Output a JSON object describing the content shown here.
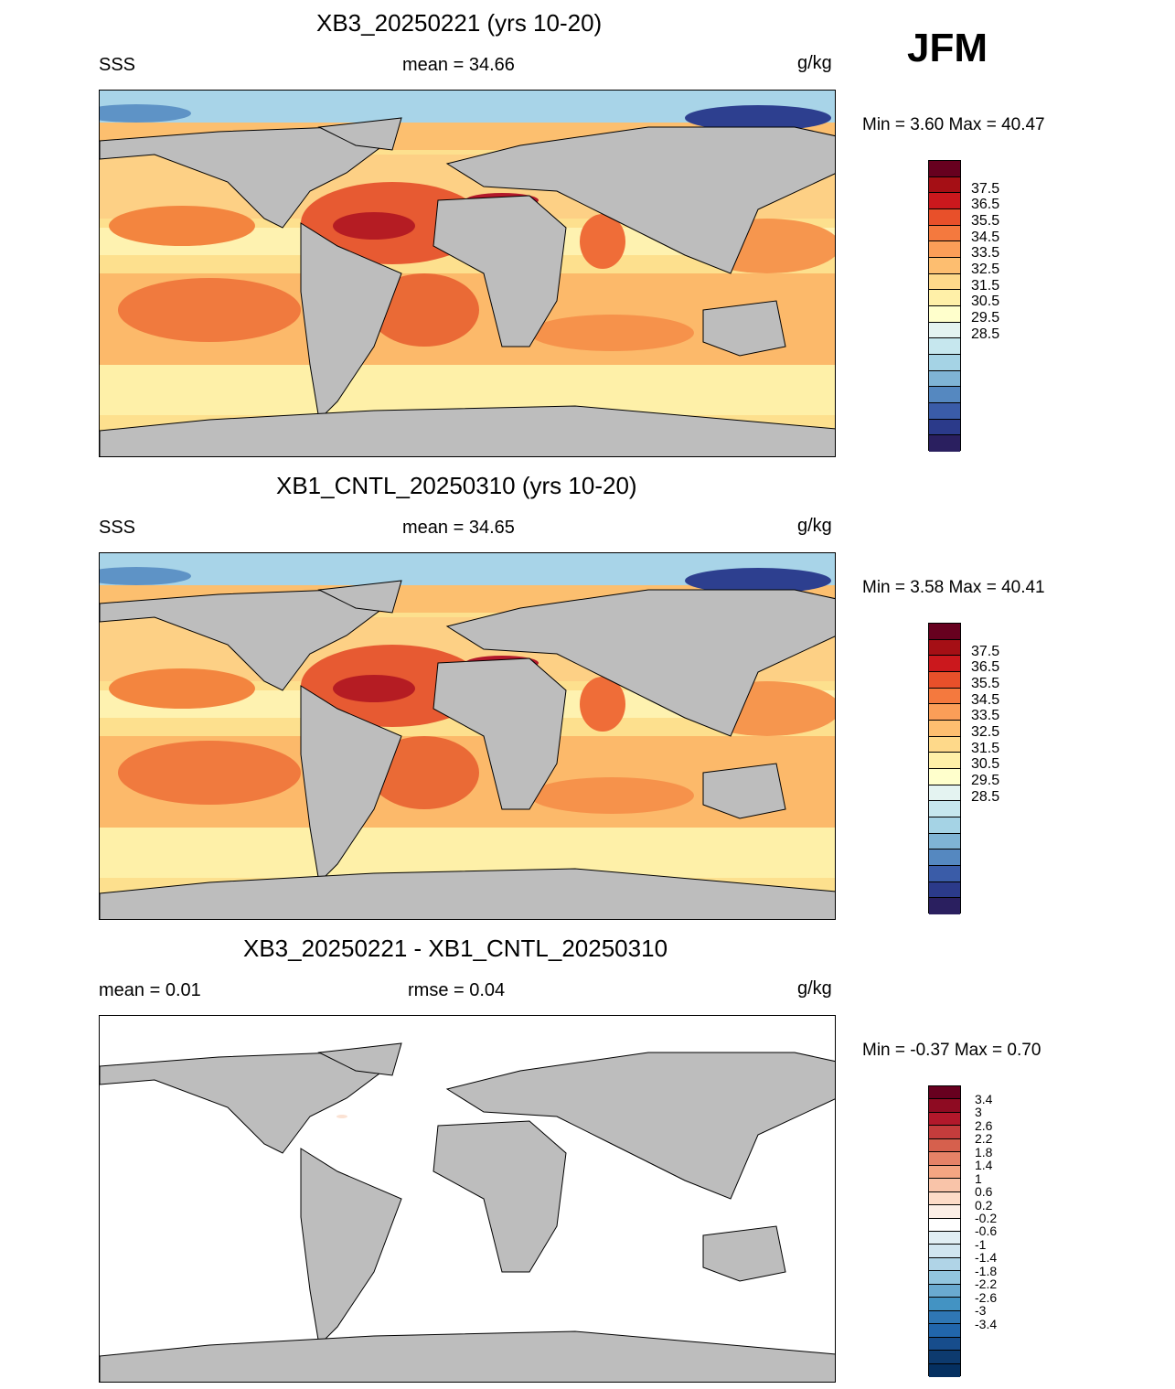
{
  "season": "JFM",
  "panels": [
    {
      "title": "XB3_20250221 (yrs 10-20)",
      "left_label": "SSS",
      "center_label": "mean =  34.66",
      "units": "g/kg",
      "minmax": "Min =   3.60 Max =  40.47",
      "type": "field"
    },
    {
      "title": "XB1_CNTL_20250310 (yrs 10-20)",
      "left_label": "SSS",
      "center_label": "mean =  34.65",
      "units": "g/kg",
      "minmax": "Min =   3.58 Max =  40.41",
      "type": "field"
    },
    {
      "title": "XB3_20250221 - XB1_CNTL_20250310",
      "left_label": "mean =   0.01",
      "center_label": "rmse =   0.04",
      "units": "g/kg",
      "minmax": "Min =  -0.37 Max =   0.70",
      "type": "difference"
    }
  ],
  "colorbar_field": {
    "labels": [
      "37.5",
      "36.5",
      "35.5",
      "34.5",
      "33.5",
      "32.5",
      "31.5",
      "30.5",
      "29.5",
      "28.5"
    ],
    "colors": [
      "#67001f",
      "#a50f15",
      "#cb181d",
      "#e8502a",
      "#f4793e",
      "#fb9e58",
      "#fdbe70",
      "#fed98a",
      "#fff0a8",
      "#ffffcc",
      "#e4f3f1",
      "#c6e7ee",
      "#a5d3e5",
      "#7fb4d5",
      "#5588c0",
      "#3a5ca8",
      "#2b3a8a",
      "#2a1f5f"
    ]
  },
  "colorbar_diff": {
    "labels": [
      "3.4",
      "3",
      "2.6",
      "2.2",
      "1.8",
      "1.4",
      "1",
      "0.6",
      "0.2",
      "-0.2",
      "-0.6",
      "-1",
      "-1.4",
      "-1.8",
      "-2.2",
      "-2.6",
      "-3",
      "-3.4"
    ],
    "colors": [
      "#67001f",
      "#8e0b22",
      "#b2182b",
      "#c43c3c",
      "#d6604d",
      "#e58267",
      "#f4a582",
      "#f9c4a9",
      "#fddbc7",
      "#fbeee6",
      "#ffffff",
      "#e1eef4",
      "#d1e5f0",
      "#b0d4e7",
      "#92c5de",
      "#6aaad0",
      "#4393c3",
      "#2f77b5",
      "#2166ac",
      "#174d8c",
      "#0d3a6e",
      "#053061"
    ]
  }
}
